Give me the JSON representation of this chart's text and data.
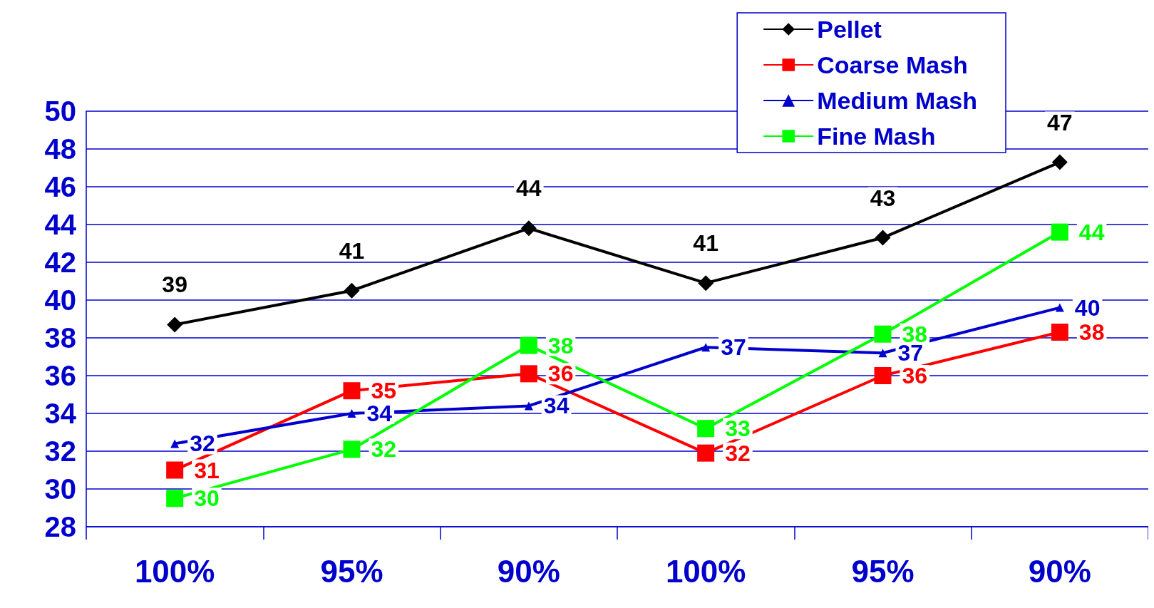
{
  "chart_data": {
    "type": "line",
    "categories": [
      "100%",
      "95%",
      "90%",
      "100%",
      "95%",
      "90%"
    ],
    "ylim": [
      28,
      50
    ],
    "yticks": [
      28,
      30,
      32,
      34,
      36,
      38,
      40,
      42,
      44,
      46,
      48,
      50
    ],
    "grid": "y",
    "legend": "top right",
    "series": [
      {
        "name": "Pellet",
        "color": "#000000",
        "marker": "diamond",
        "values": [
          38.7,
          40.5,
          43.8,
          40.9,
          43.3,
          47.3
        ],
        "value_labels": [
          "39",
          "41",
          "44",
          "41",
          "43",
          "47"
        ]
      },
      {
        "name": "Coarse Mash",
        "color": "#ff0000",
        "marker": "square",
        "values": [
          31.0,
          35.2,
          36.1,
          31.9,
          36.0,
          38.3
        ],
        "value_labels": [
          "31",
          "35",
          "36",
          "32",
          "36",
          "38"
        ]
      },
      {
        "name": "Medium Mash",
        "color": "#0000cc",
        "marker": "triangle",
        "values": [
          32.4,
          34.0,
          34.4,
          37.5,
          37.2,
          39.6
        ],
        "value_labels": [
          "32",
          "34",
          "34",
          "37",
          "37",
          "40"
        ]
      },
      {
        "name": "Fine Mash",
        "color": "#00ff00",
        "marker": "square",
        "values": [
          29.5,
          32.1,
          37.6,
          33.2,
          38.2,
          43.6
        ],
        "value_labels": [
          "30",
          "32",
          "38",
          "33",
          "38",
          "44"
        ]
      }
    ]
  }
}
